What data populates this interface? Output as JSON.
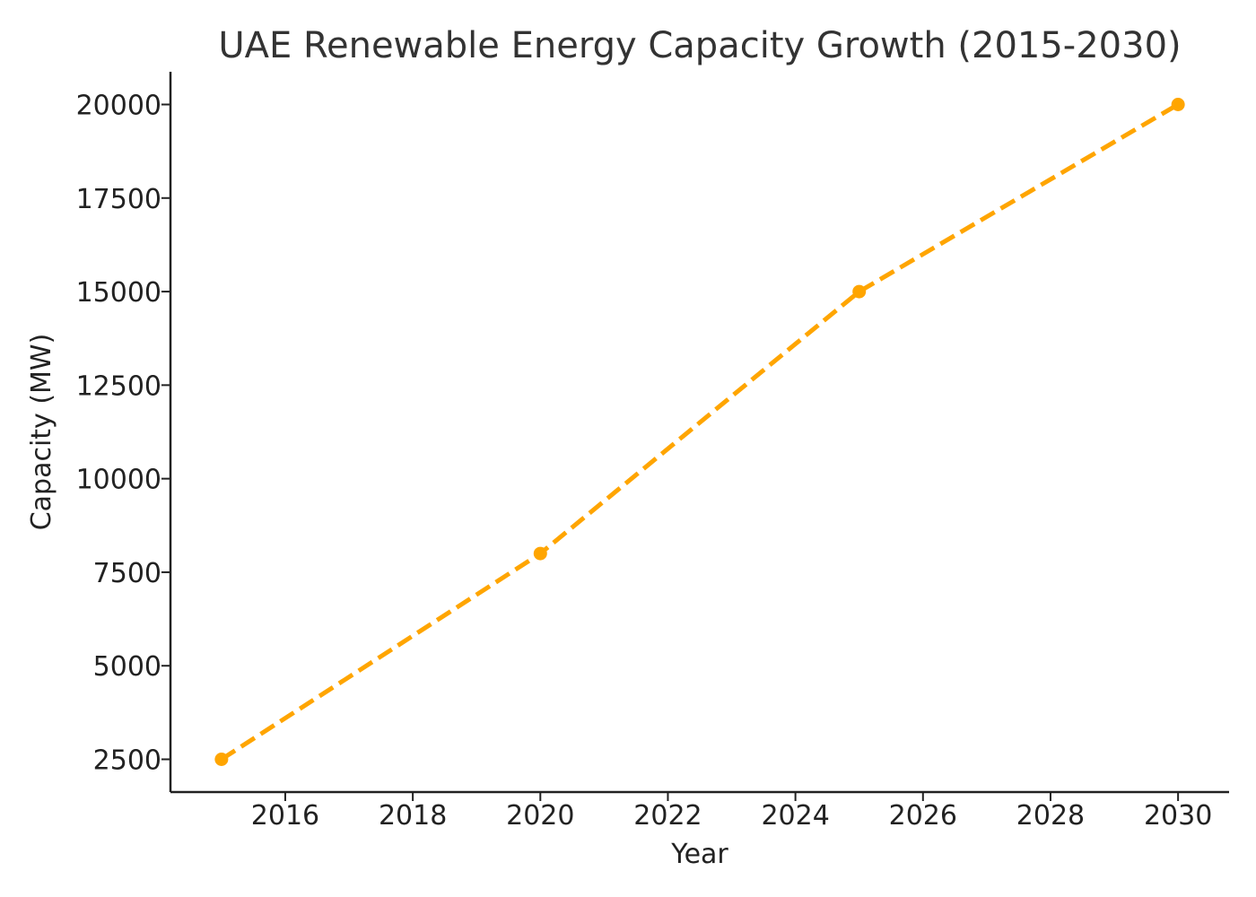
{
  "chart_data": {
    "type": "line",
    "title": "UAE Renewable Energy Capacity Growth (2015-2030)",
    "xlabel": "Year",
    "ylabel": "Capacity (MW)",
    "xlim": [
      2014.2,
      2030.8
    ],
    "ylim": [
      1625,
      20875
    ],
    "x_ticks": [
      2016,
      2018,
      2020,
      2022,
      2024,
      2026,
      2028,
      2030
    ],
    "y_ticks": [
      2500,
      5000,
      7500,
      10000,
      12500,
      15000,
      17500,
      20000
    ],
    "grid": false,
    "series": [
      {
        "x": [
          2015,
          2020,
          2025,
          2030
        ],
        "values": [
          2500,
          8000,
          15000,
          20000
        ],
        "color": "#FFA500",
        "line_style": "dashed",
        "marker": "circle"
      }
    ]
  }
}
